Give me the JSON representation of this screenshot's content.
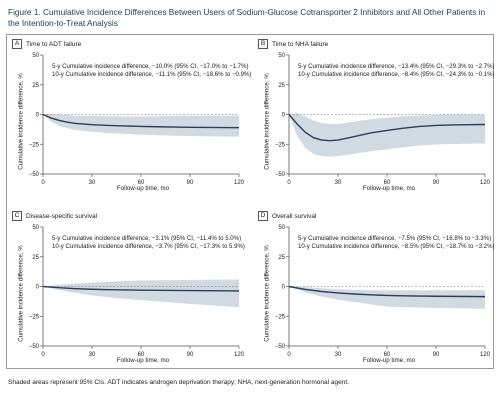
{
  "title": "Figure 1. Cumulative Incidence Differences Between Users of Sodium-Glucose Cotransporter 2 Inhibitors and All Other Patients in the Intention-to-Treat Analysis",
  "footnote": "Shaded areas represent 95% CIs. ADT indicates androgen deprivation therapy; NHA, next-generation hormonal agent.",
  "colors": {
    "line": "#2b3e57",
    "band": "#c9d2dc",
    "axis": "#555555",
    "title": "#1d3a5c"
  },
  "chart_data": [
    {
      "type": "line",
      "letter": "A",
      "title": "Time to ADT failure",
      "annotations": [
        "5-y Cumulative incidence difference, −10.0% (95% CI, −17.0% to −1.7%)",
        "10-y Cumulative incidence difference, −11.1% (95% CI, −18.6% to −0.9%)"
      ],
      "xlabel": "Follow-up time, mo",
      "ylabel": "Cumulative incidence difference, %",
      "xlim": [
        0,
        120
      ],
      "ylim": [
        -50,
        50
      ],
      "xticks": [
        0,
        30,
        60,
        90,
        120
      ],
      "yticks": [
        50,
        25,
        0,
        -25,
        -50
      ],
      "x": [
        0,
        5,
        10,
        15,
        20,
        30,
        40,
        50,
        60,
        70,
        80,
        90,
        100,
        110,
        120
      ],
      "y": [
        0,
        -3,
        -5,
        -6.5,
        -7.5,
        -8.6,
        -9.2,
        -9.6,
        -10.0,
        -10.3,
        -10.6,
        -10.8,
        -10.9,
        -11.0,
        -11.1
      ],
      "ci_lower": [
        0,
        -6,
        -9.5,
        -11.5,
        -13,
        -14.5,
        -15.5,
        -16.3,
        -17.0,
        -17.4,
        -17.8,
        -18.1,
        -18.3,
        -18.5,
        -18.6
      ],
      "ci_upper": [
        0,
        0.5,
        0,
        -0.5,
        -1,
        -1.3,
        -1.5,
        -1.6,
        -1.7,
        -1.5,
        -1.3,
        -1.2,
        -1.1,
        -1.0,
        -0.9
      ]
    },
    {
      "type": "line",
      "letter": "B",
      "title": "Time to NHA failure",
      "annotations": [
        "5-y Cumulative incidence difference, −13.4% (95% CI, −29.3% to −2.7%)",
        "10-y Cumulative incidence difference, −8.4% (95% CI, −24.3% to −0.1%)"
      ],
      "xlabel": "Follow-up time, mo",
      "ylabel": "Cumulative incidence difference, %",
      "xlim": [
        0,
        120
      ],
      "ylim": [
        -50,
        50
      ],
      "xticks": [
        0,
        30,
        60,
        90,
        120
      ],
      "yticks": [
        50,
        25,
        0,
        -25,
        -50
      ],
      "x": [
        0,
        5,
        10,
        15,
        20,
        25,
        30,
        40,
        50,
        60,
        70,
        80,
        90,
        100,
        110,
        120
      ],
      "y": [
        0,
        -8,
        -15,
        -19.5,
        -21.5,
        -22,
        -21.5,
        -18.5,
        -15.5,
        -13.4,
        -11.5,
        -10,
        -9.2,
        -8.8,
        -8.6,
        -8.4
      ],
      "ci_lower": [
        0,
        -18,
        -28,
        -33,
        -35,
        -35.5,
        -35,
        -33,
        -31,
        -29.3,
        -27.5,
        -26,
        -25.2,
        -24.8,
        -24.5,
        -24.3
      ],
      "ci_upper": [
        0,
        1,
        -2,
        -5,
        -7,
        -8,
        -8,
        -6,
        -4,
        -2.7,
        -1.5,
        -0.8,
        -0.4,
        -0.2,
        -0.1,
        -0.1
      ]
    },
    {
      "type": "line",
      "letter": "C",
      "title": "Disease-specific survival",
      "annotations": [
        "5-y Cumulative incidence difference, −3.1% (95% CI, −11.4% to 5.0%)",
        "10-y Cumulative incidence difference, −3.7% (95% CI, −17.3% to 5.9%)"
      ],
      "xlabel": "Follow-up time, mo",
      "ylabel": "Cumulative incidence difference, %",
      "xlim": [
        0,
        120
      ],
      "ylim": [
        -50,
        50
      ],
      "xticks": [
        0,
        30,
        60,
        90,
        120
      ],
      "yticks": [
        50,
        25,
        0,
        -25,
        -50
      ],
      "x": [
        0,
        10,
        20,
        30,
        40,
        50,
        60,
        70,
        80,
        90,
        100,
        110,
        120
      ],
      "y": [
        0,
        -1,
        -1.8,
        -2.3,
        -2.7,
        -2.9,
        -3.1,
        -3.2,
        -3.3,
        -3.4,
        -3.5,
        -3.6,
        -3.7
      ],
      "ci_lower": [
        0,
        -3,
        -5.5,
        -7.5,
        -9,
        -10.3,
        -11.4,
        -12.5,
        -13.6,
        -14.6,
        -15.6,
        -16.5,
        -17.3
      ],
      "ci_upper": [
        0,
        1.5,
        2.5,
        3.3,
        4,
        4.6,
        5.0,
        5.2,
        5.4,
        5.6,
        5.7,
        5.8,
        5.9
      ]
    },
    {
      "type": "line",
      "letter": "D",
      "title": "Overall survival",
      "annotations": [
        "5-y Cumulative incidence difference, −7.5% (95% CI, −16.8% to −3.3%)",
        "10-y Cumulative incidence difference, −8.5% (95% CI, −18.7% to −3.2%)"
      ],
      "xlabel": "Follow-up time, mo",
      "ylabel": "Cumulative incidence difference, %",
      "xlim": [
        0,
        120
      ],
      "ylim": [
        -50,
        50
      ],
      "xticks": [
        0,
        30,
        60,
        90,
        120
      ],
      "yticks": [
        50,
        25,
        0,
        -25,
        -50
      ],
      "x": [
        0,
        10,
        20,
        30,
        40,
        50,
        60,
        70,
        80,
        90,
        100,
        110,
        120
      ],
      "y": [
        0,
        -2.5,
        -4.2,
        -5.4,
        -6.3,
        -7.0,
        -7.5,
        -7.8,
        -8.0,
        -8.2,
        -8.3,
        -8.4,
        -8.5
      ],
      "ci_lower": [
        0,
        -5,
        -8.5,
        -11,
        -13,
        -15,
        -16.8,
        -17.3,
        -17.7,
        -18.0,
        -18.3,
        -18.5,
        -18.7
      ],
      "ci_upper": [
        0,
        -0.5,
        -1.5,
        -2.3,
        -2.8,
        -3.1,
        -3.3,
        -3.3,
        -3.3,
        -3.2,
        -3.2,
        -3.2,
        -3.2
      ]
    }
  ]
}
